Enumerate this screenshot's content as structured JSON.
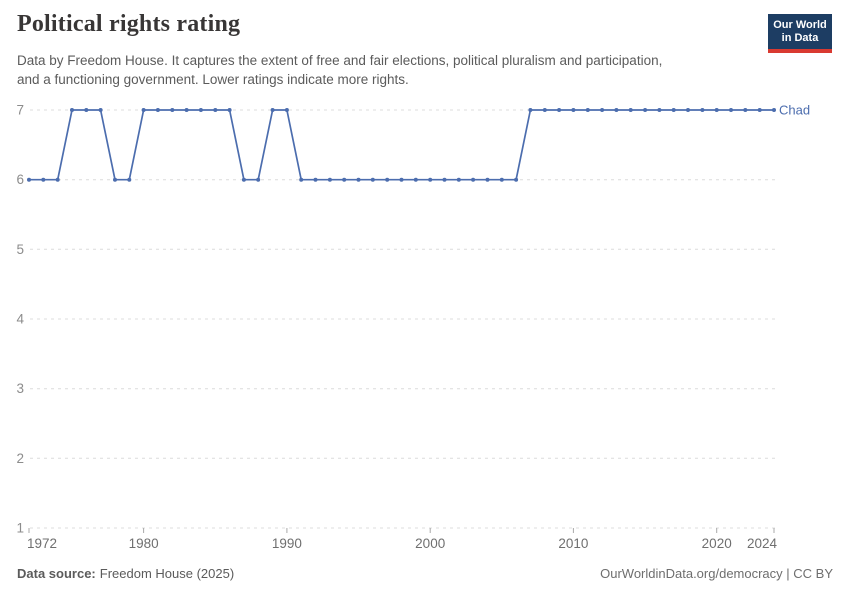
{
  "header": {
    "title": "Political rights rating",
    "subtitle_lines": [
      "Data by Freedom House. It captures the extent of free and fair elections, political pluralism and participation,",
      "and a functioning government. Lower ratings indicate more rights."
    ],
    "logo": {
      "line1": "Our World",
      "line2": "in Data",
      "bg_color": "#1d3d63",
      "stripe_color": "#d93a31"
    }
  },
  "chart_data": {
    "type": "line",
    "title": "Political rights rating",
    "x": [
      1972,
      1973,
      1974,
      1975,
      1976,
      1977,
      1978,
      1979,
      1980,
      1981,
      1982,
      1983,
      1984,
      1985,
      1986,
      1987,
      1988,
      1989,
      1990,
      1991,
      1992,
      1993,
      1994,
      1995,
      1996,
      1997,
      1998,
      1999,
      2000,
      2001,
      2002,
      2003,
      2004,
      2005,
      2006,
      2007,
      2008,
      2009,
      2010,
      2011,
      2012,
      2013,
      2014,
      2015,
      2016,
      2017,
      2018,
      2019,
      2020,
      2021,
      2022,
      2023,
      2024
    ],
    "series": [
      {
        "name": "Chad",
        "color": "#4C6DAE",
        "values": [
          6,
          6,
          6,
          7,
          7,
          7,
          6,
          6,
          7,
          7,
          7,
          7,
          7,
          7,
          7,
          6,
          6,
          7,
          7,
          6,
          6,
          6,
          6,
          6,
          6,
          6,
          6,
          6,
          6,
          6,
          6,
          6,
          6,
          6,
          6,
          7,
          7,
          7,
          7,
          7,
          7,
          7,
          7,
          7,
          7,
          7,
          7,
          7,
          7,
          7,
          7,
          7,
          7
        ]
      }
    ],
    "ylim": [
      1,
      7
    ],
    "yticks": [
      1,
      2,
      3,
      4,
      5,
      6,
      7
    ],
    "xticks": [
      1972,
      1980,
      1990,
      2000,
      2010,
      2020,
      2024
    ],
    "grid": "horizontal-dashed",
    "legend_position": "end-of-line",
    "colors": {
      "grid": "#dcdcdc",
      "y_axis_text": "#8c8c8c",
      "x_axis_text": "#6f6f6f",
      "tick": "#a9a9a9"
    }
  },
  "footer": {
    "source_label": "Data source:",
    "source_value": "Freedom House (2025)",
    "right_text": "OurWorldinData.org/democracy | CC BY"
  }
}
